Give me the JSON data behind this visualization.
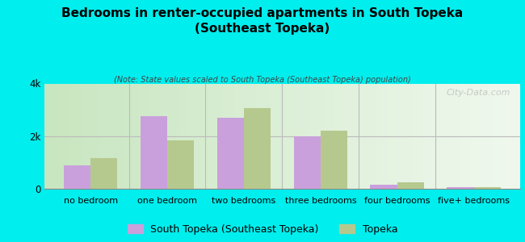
{
  "title": "Bedrooms in renter-occupied apartments in South Topeka\n(Southeast Topeka)",
  "subtitle": "(Note: State values scaled to South Topeka (Southeast Topeka) population)",
  "categories": [
    "no bedroom",
    "one bedroom",
    "two bedrooms",
    "three bedrooms",
    "four bedrooms",
    "five+ bedrooms"
  ],
  "south_topeka": [
    900,
    2750,
    2700,
    2000,
    150,
    50
  ],
  "topeka": [
    1150,
    1850,
    3050,
    2200,
    230,
    75
  ],
  "color_south": "#c9a0dc",
  "color_topeka": "#b5c98e",
  "background_outer": "#00eeee",
  "ylim": [
    0,
    4000
  ],
  "yticks": [
    0,
    2000,
    4000
  ],
  "ytick_labels": [
    "0",
    "2k",
    "4k"
  ],
  "legend_south": "South Topeka (Southeast Topeka)",
  "legend_topeka": "Topeka",
  "watermark": "City-Data.com",
  "bar_width": 0.35
}
